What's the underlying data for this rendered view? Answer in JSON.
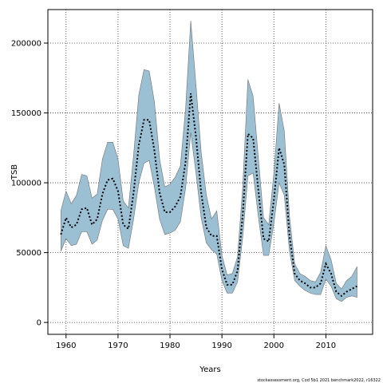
{
  "chart_data": {
    "type": "area",
    "xlabel": "Years",
    "ylabel": "TSB",
    "xlim": [
      1956.5,
      2019
    ],
    "ylim": [
      -8500,
      224000
    ],
    "xticks": [
      1960,
      1970,
      1980,
      1990,
      2000,
      2010
    ],
    "yticks": [
      0,
      50000,
      100000,
      150000,
      200000
    ],
    "grid": true,
    "colors": {
      "band": "#9bc0d4",
      "band_edge": "#707070",
      "line": "#000000"
    },
    "credit": "stockassessment.org, Cod 5b1 2021 benchmark2022, r16322",
    "x": [
      1959,
      1960,
      1961,
      1962,
      1963,
      1964,
      1965,
      1966,
      1967,
      1968,
      1969,
      1970,
      1971,
      1972,
      1973,
      1974,
      1975,
      1976,
      1977,
      1978,
      1979,
      1980,
      1981,
      1982,
      1983,
      1984,
      1985,
      1986,
      1987,
      1988,
      1989,
      1990,
      1991,
      1992,
      1993,
      1994,
      1995,
      1996,
      1997,
      1998,
      1999,
      2000,
      2001,
      2002,
      2003,
      2004,
      2005,
      2006,
      2007,
      2008,
      2009,
      2010,
      2011,
      2012,
      2013,
      2014,
      2015,
      2016
    ],
    "series": [
      {
        "role": "estimate",
        "values": [
          63000,
          75000,
          68000,
          70000,
          81000,
          82000,
          70000,
          74000,
          92000,
          102000,
          103000,
          94000,
          70000,
          67000,
          93000,
          127000,
          145000,
          145000,
          123000,
          93000,
          79000,
          79000,
          83000,
          90000,
          115000,
          164000,
          133000,
          93000,
          68000,
          62000,
          62000,
          38000,
          27000,
          27000,
          37000,
          77000,
          135000,
          132000,
          95000,
          60000,
          58000,
          88000,
          125000,
          113000,
          62000,
          35000,
          30000,
          28000,
          25000,
          25000,
          28000,
          42000,
          35000,
          22000,
          19000,
          22000,
          24000,
          26000
        ]
      },
      {
        "role": "upper",
        "values": [
          80000,
          94000,
          85000,
          91000,
          106000,
          105000,
          89000,
          92000,
          117000,
          129000,
          129000,
          117000,
          87000,
          82000,
          120000,
          163000,
          181000,
          180000,
          158000,
          117000,
          97000,
          99000,
          104000,
          112000,
          153000,
          216000,
          170000,
          122000,
          91000,
          74000,
          80000,
          48000,
          34000,
          35000,
          47000,
          97000,
          174000,
          162000,
          118000,
          75000,
          70000,
          107000,
          157000,
          137000,
          76000,
          42000,
          35000,
          33000,
          30000,
          29000,
          36000,
          55000,
          45000,
          28000,
          24000,
          30000,
          33000,
          40000
        ]
      },
      {
        "role": "lower",
        "values": [
          51000,
          60000,
          55000,
          56000,
          65000,
          65000,
          56000,
          59000,
          73000,
          81000,
          81000,
          74000,
          55000,
          53000,
          74000,
          100000,
          114000,
          116000,
          97000,
          74000,
          63000,
          64000,
          66000,
          72000,
          96000,
          136000,
          107000,
          75000,
          57000,
          52000,
          49000,
          30000,
          21000,
          21000,
          29000,
          61000,
          105000,
          107000,
          76000,
          48000,
          48000,
          71000,
          100000,
          91000,
          51000,
          30000,
          26000,
          23000,
          21000,
          20000,
          20000,
          31000,
          26000,
          17000,
          15000,
          18000,
          19000,
          18000
        ]
      }
    ]
  }
}
